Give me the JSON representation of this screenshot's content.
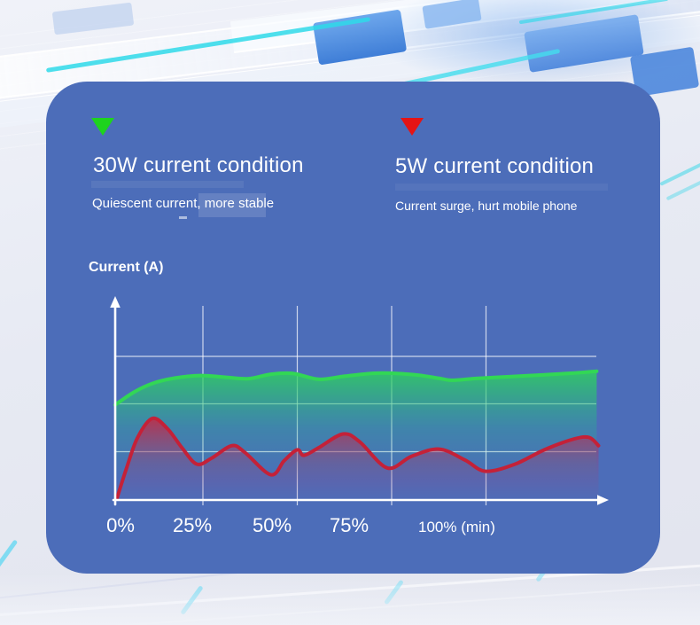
{
  "card": {
    "background": "#4c6db9"
  },
  "legend": {
    "left": {
      "marker": "green-down-triangle",
      "marker_color": "#1ed31e",
      "title": "30W current condition",
      "subtitle": "Quiescent current, more stable"
    },
    "right": {
      "marker": "red-down-triangle",
      "marker_color": "#e51414",
      "title": "5W current condition",
      "subtitle": "Current surge, hurt mobile phone"
    }
  },
  "chart": {
    "y_axis_label": "Current (A)",
    "x_tick_labels": [
      "0%",
      "25%",
      "50%",
      "75%"
    ],
    "x_end_label": "100% (min)",
    "axis_color": "#ffffff",
    "gridline_color": "rgba(255,255,255,0.72)"
  },
  "chart_data": {
    "type": "area",
    "ylabel": "Current (A)",
    "x_ticks": [
      "0%",
      "25%",
      "50%",
      "75%",
      "100% (min)"
    ],
    "x_range_pct": [
      0,
      130
    ],
    "ylim": [
      0,
      1
    ],
    "y_scale": "relative (no numeric y ticks shown)",
    "grid": true,
    "legend_position": "above-chart",
    "series": [
      {
        "name": "30W current condition",
        "color": "#32d755",
        "x": [
          0,
          5,
          10,
          16,
          23,
          30,
          36,
          42,
          48,
          55,
          62,
          70,
          76,
          82,
          88,
          91,
          98,
          107,
          116,
          124,
          130
        ],
        "y": [
          0.49,
          0.555,
          0.6,
          0.628,
          0.641,
          0.632,
          0.625,
          0.648,
          0.652,
          0.622,
          0.638,
          0.653,
          0.652,
          0.643,
          0.625,
          0.617,
          0.627,
          0.636,
          0.645,
          0.654,
          0.663
        ]
      },
      {
        "name": "5W current condition",
        "color": "#c42138",
        "x": [
          0.5,
          3,
          6,
          10,
          14,
          18,
          22,
          26,
          31.5,
          35,
          42,
          45.5,
          48,
          49.5,
          51,
          55,
          61.5,
          66,
          73.5,
          80,
          87.5,
          94.5,
          100,
          108,
          116,
          124,
          128,
          130.5
        ],
        "y": [
          0.01,
          0.16,
          0.32,
          0.42,
          0.37,
          0.27,
          0.185,
          0.215,
          0.28,
          0.245,
          0.13,
          0.2,
          0.245,
          0.258,
          0.23,
          0.27,
          0.34,
          0.3,
          0.165,
          0.225,
          0.262,
          0.205,
          0.148,
          0.185,
          0.26,
          0.315,
          0.322,
          0.28
        ]
      }
    ]
  }
}
